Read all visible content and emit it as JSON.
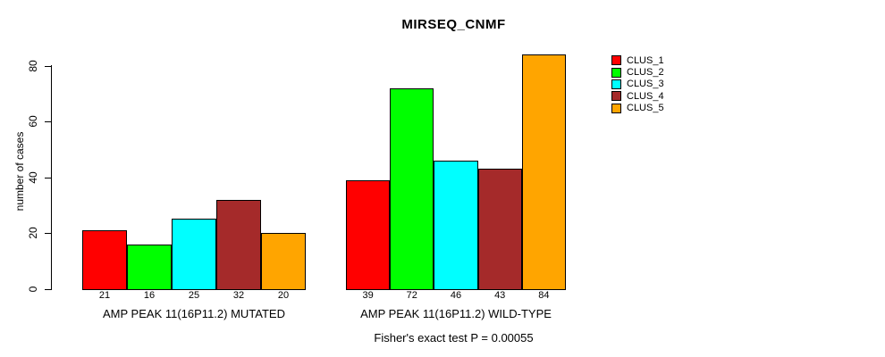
{
  "chart_data": {
    "type": "bar",
    "title": "MIRSEQ_CNMF",
    "xlabel": "",
    "ylabel": "number of cases",
    "ylim": [
      0,
      84
    ],
    "yticks": [
      0,
      20,
      40,
      60,
      80
    ],
    "grid": false,
    "legend_position": "right-outside",
    "bar_border_color": "#000000",
    "groups": [
      {
        "label": "AMP PEAK 11(16P11.2) MUTATED",
        "values": [
          21,
          16,
          25,
          32,
          20
        ]
      },
      {
        "label": "AMP PEAK 11(16P11.2) WILD-TYPE",
        "values": [
          39,
          72,
          46,
          43,
          84
        ]
      }
    ],
    "series": [
      {
        "name": "CLUS_1",
        "color": "#FF0000"
      },
      {
        "name": "CLUS_2",
        "color": "#00FF00"
      },
      {
        "name": "CLUS_3",
        "color": "#00FFFF"
      },
      {
        "name": "CLUS_4",
        "color": "#A52A2A"
      },
      {
        "name": "CLUS_5",
        "color": "#FFA500"
      }
    ],
    "annotation": "Fisher's exact test P = 0.00055"
  }
}
